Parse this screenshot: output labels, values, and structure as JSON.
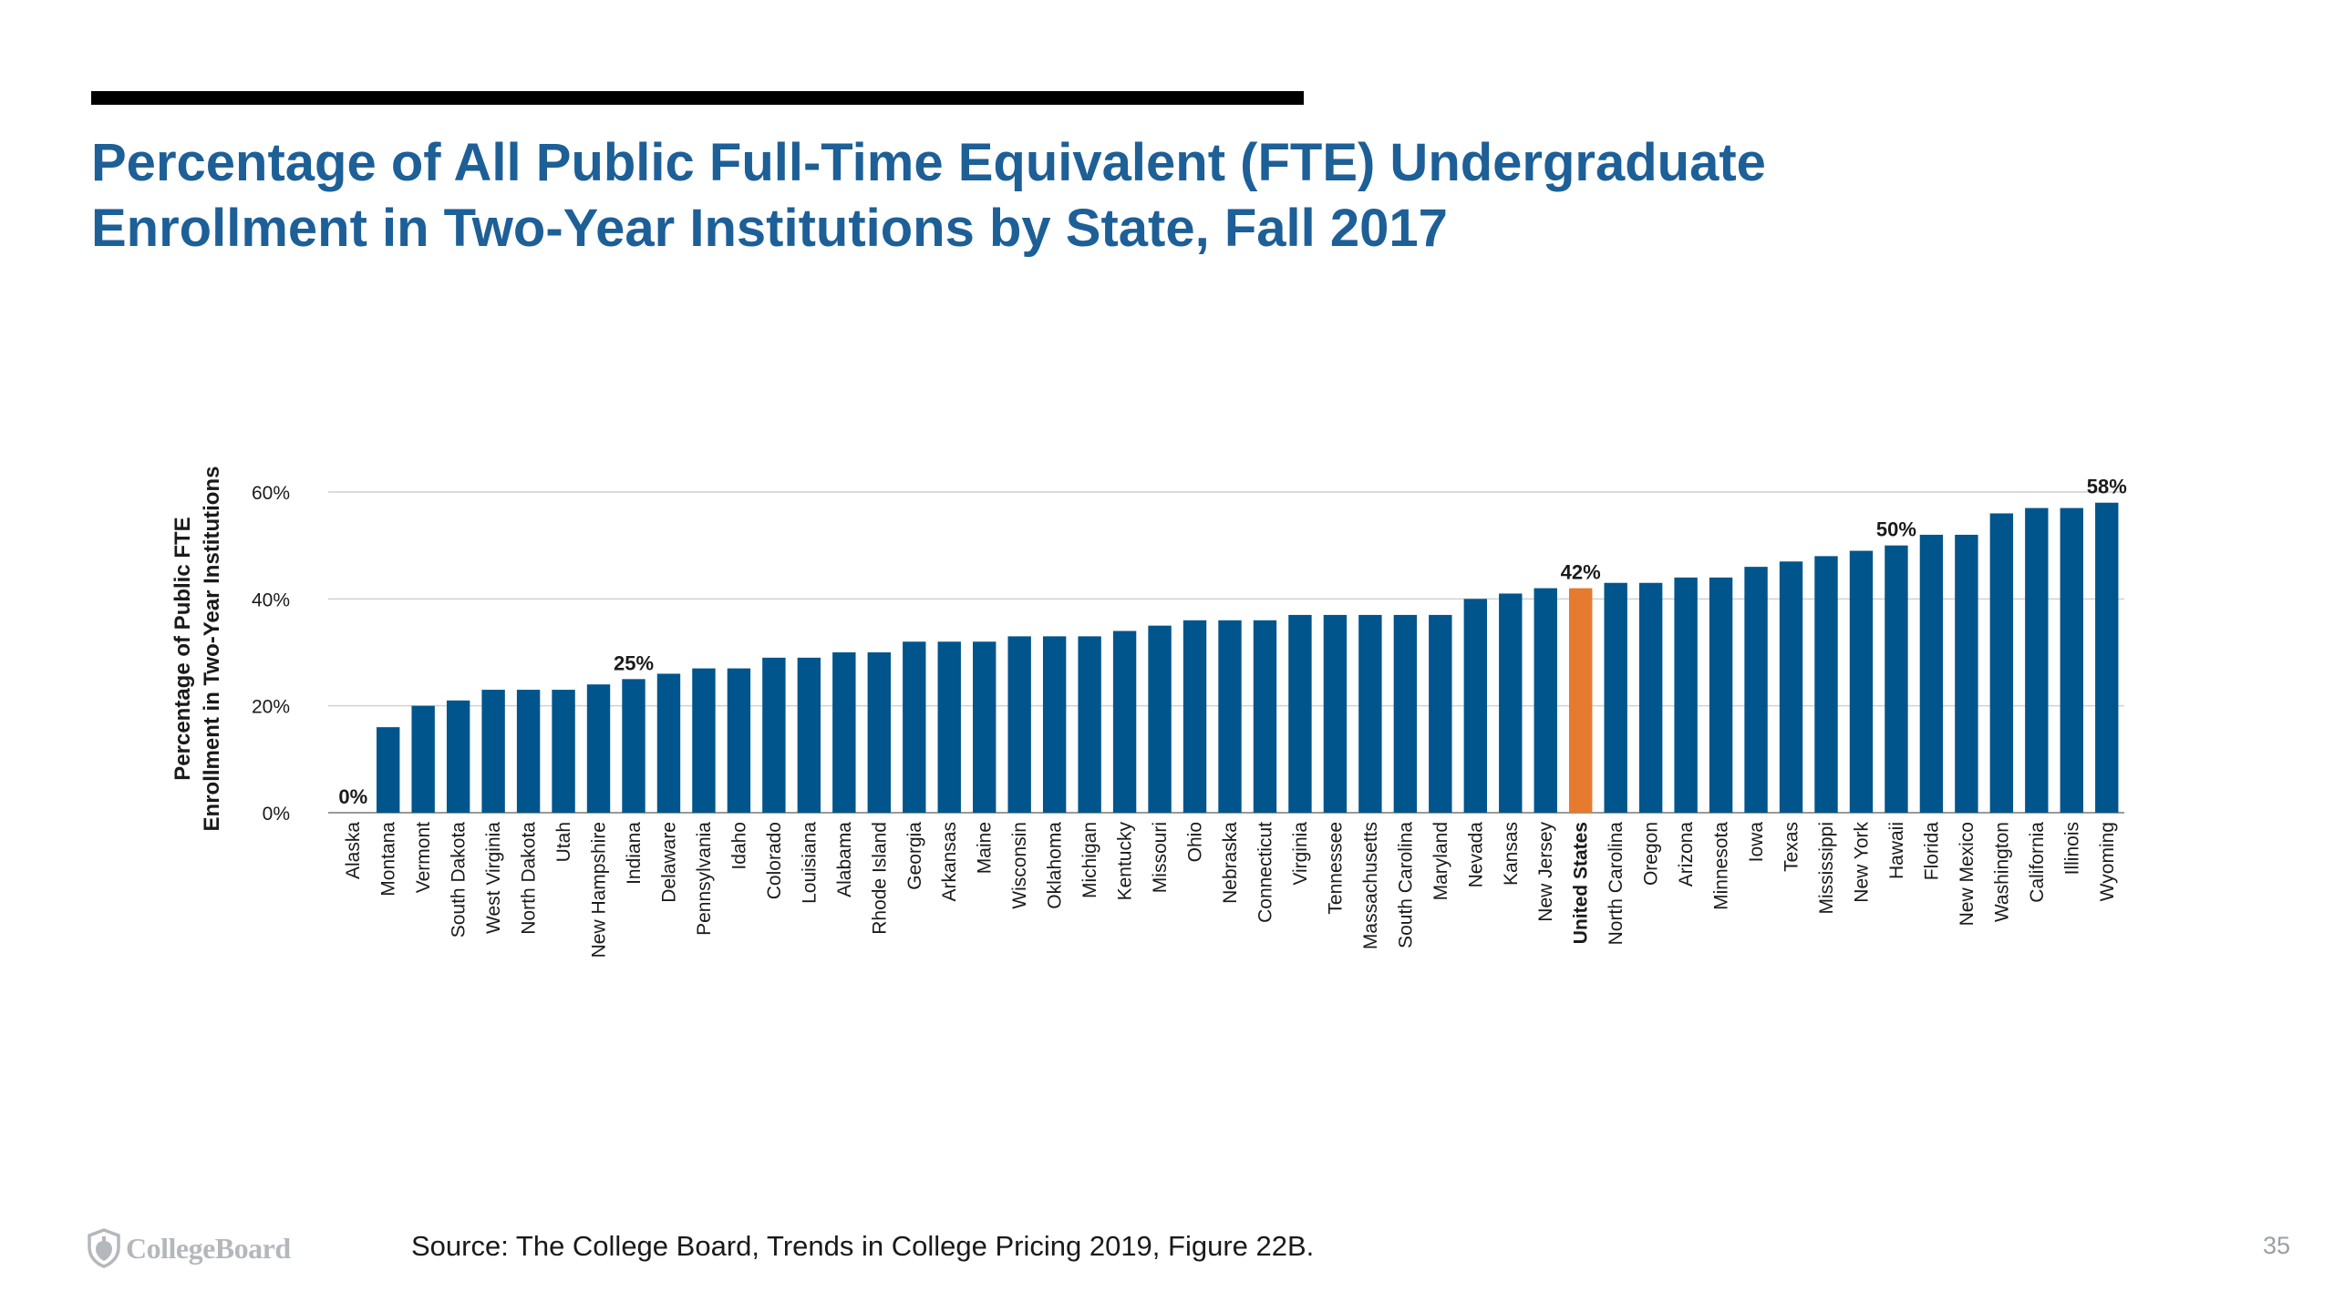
{
  "slide": {
    "title_line1": "Percentage of All Public Full-Time Equivalent (FTE) Undergraduate",
    "title_line2": "Enrollment in Two-Year Institutions by State, Fall 2017",
    "source": "Source: The College Board, Trends in College Pricing 2019, Figure 22B.",
    "page_number": "35",
    "logo_text": "CollegeBoard",
    "logo_icon": "acorn-shield-icon",
    "colors": {
      "title": "#1d5f97",
      "bar": "#00558c",
      "highlight_bar": "#e67a2e",
      "gridline": "#d0d0d0",
      "text": "#1a1a1a",
      "logo": "#b4b8bd"
    }
  },
  "chart_data": {
    "type": "bar",
    "title": "",
    "xlabel": "",
    "ylabel_line1": "Percentage of Public FTE",
    "ylabel_line2": "Enrollment in Two-Year Institutions",
    "ylim": [
      0,
      60
    ],
    "yticks": [
      0,
      20,
      40,
      60
    ],
    "ytick_labels": [
      "0%",
      "20%",
      "40%",
      "60%"
    ],
    "grid": true,
    "highlight_category": "United States",
    "categories": [
      "Alaska",
      "Montana",
      "Vermont",
      "South Dakota",
      "West Virginia",
      "North Dakota",
      "Utah",
      "New Hampshire",
      "Indiana",
      "Delaware",
      "Pennsylvania",
      "Idaho",
      "Colorado",
      "Louisiana",
      "Alabama",
      "Rhode Island",
      "Georgia",
      "Arkansas",
      "Maine",
      "Wisconsin",
      "Oklahoma",
      "Michigan",
      "Kentucky",
      "Missouri",
      "Ohio",
      "Nebraska",
      "Connecticut",
      "Virginia",
      "Tennessee",
      "Massachusetts",
      "South Carolina",
      "Maryland",
      "Nevada",
      "Kansas",
      "New Jersey",
      "United States",
      "North Carolina",
      "Oregon",
      "Arizona",
      "Minnesota",
      "Iowa",
      "Texas",
      "Mississippi",
      "New York",
      "Hawaii",
      "Florida",
      "New Mexico",
      "Washington",
      "California",
      "Illinois",
      "Wyoming"
    ],
    "values": [
      0,
      16,
      20,
      21,
      23,
      23,
      23,
      24,
      25,
      26,
      27,
      27,
      29,
      29,
      30,
      30,
      32,
      32,
      32,
      33,
      33,
      33,
      34,
      35,
      36,
      36,
      36,
      37,
      37,
      37,
      37,
      37,
      40,
      41,
      42,
      42,
      43,
      43,
      44,
      44,
      46,
      47,
      48,
      49,
      50,
      52,
      52,
      56,
      57,
      57,
      58
    ],
    "data_labels": [
      {
        "category": "Alaska",
        "text": "0%"
      },
      {
        "category": "Indiana",
        "text": "25%"
      },
      {
        "category": "United States",
        "text": "42%"
      },
      {
        "category": "Hawaii",
        "text": "50%"
      },
      {
        "category": "Wyoming",
        "text": "58%"
      }
    ]
  }
}
